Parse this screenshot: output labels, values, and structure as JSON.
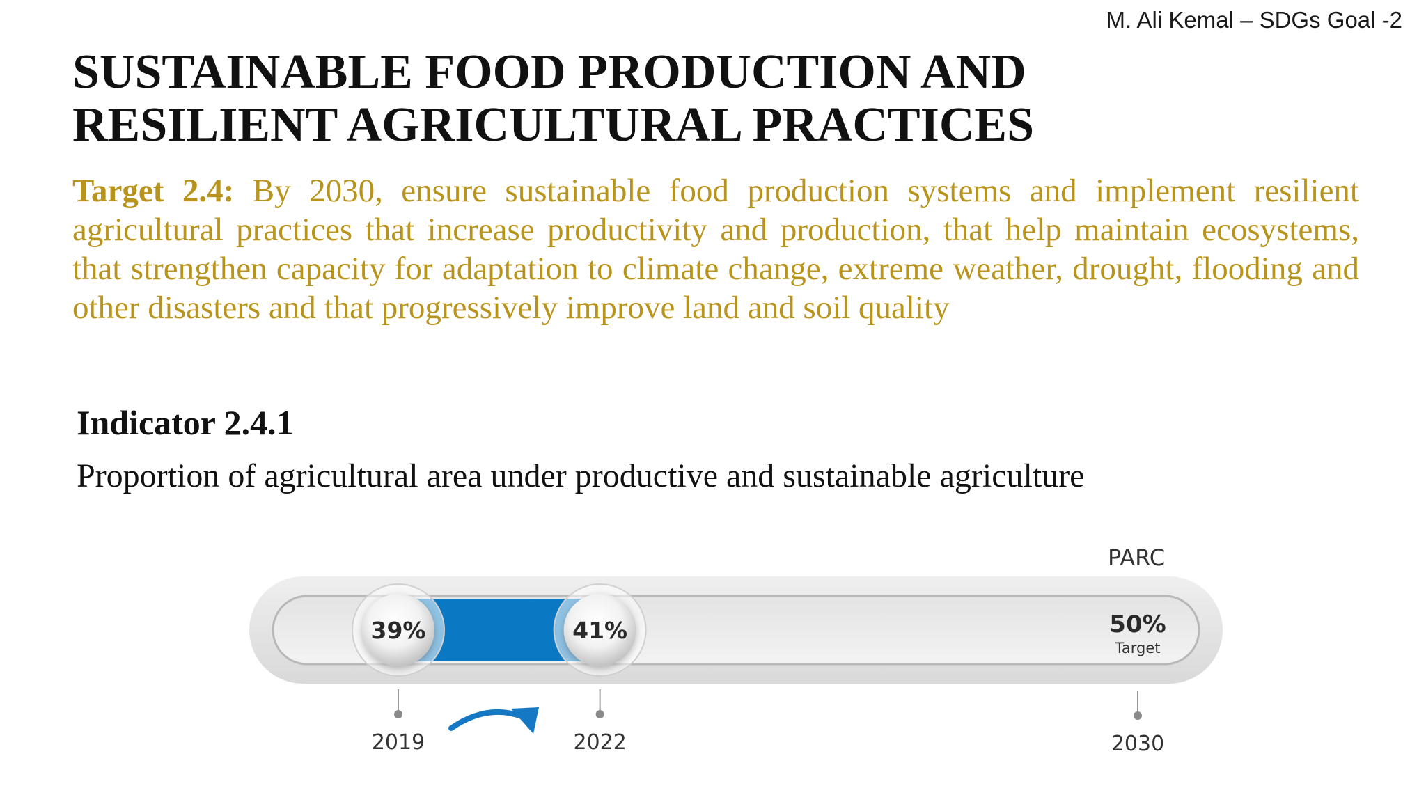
{
  "header": {
    "author": "M. Ali Kemal – SDGs Goal -2"
  },
  "title": "SUSTAINABLE FOOD PRODUCTION AND RESILIENT AGRICULTURAL PRACTICES",
  "target": {
    "label": "Target 2.4:",
    "text": " By 2030, ensure sustainable food production systems and implement resilient agricultural practices that increase productivity and production, that help maintain ecosystems, that strengthen capacity for adaptation to climate change, extreme weather, drought, flooding and other disasters and that progressively improve land and soil quality"
  },
  "indicator": {
    "heading": "Indicator 2.4.1",
    "text": "Proportion of agricultural area under productive and sustainable agriculture"
  },
  "progress": {
    "source": "PARC",
    "points": [
      {
        "year": "2019",
        "label": "39%",
        "value": 39
      },
      {
        "year": "2022",
        "label": "41%",
        "value": 41
      }
    ],
    "target": {
      "year": "2030",
      "label": "50%",
      "sublabel": "Target",
      "value": 50
    },
    "colors": {
      "fill": "#0a78c2",
      "track": "#e6e6e6",
      "arrow": "#1478c4"
    }
  }
}
